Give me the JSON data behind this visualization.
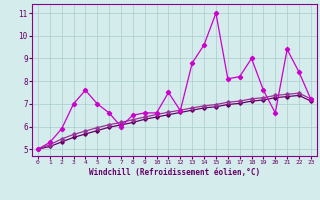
{
  "x": [
    0,
    1,
    2,
    3,
    4,
    5,
    6,
    7,
    8,
    9,
    10,
    11,
    12,
    13,
    14,
    15,
    16,
    17,
    18,
    19,
    20,
    21,
    22,
    23
  ],
  "line1": [
    5.0,
    5.3,
    5.9,
    7.0,
    7.6,
    7.0,
    6.6,
    6.0,
    6.5,
    6.6,
    6.6,
    7.5,
    6.7,
    8.8,
    9.6,
    11.0,
    8.1,
    8.2,
    9.0,
    7.6,
    6.6,
    9.4,
    8.4,
    7.2
  ],
  "trend1": [
    5.0,
    5.2,
    5.45,
    5.65,
    5.8,
    5.95,
    6.08,
    6.18,
    6.3,
    6.42,
    6.53,
    6.63,
    6.72,
    6.82,
    6.91,
    6.97,
    7.07,
    7.12,
    7.22,
    7.27,
    7.37,
    7.42,
    7.47,
    7.22
  ],
  "trend2": [
    5.0,
    5.12,
    5.32,
    5.52,
    5.67,
    5.82,
    5.97,
    6.07,
    6.18,
    6.32,
    6.42,
    6.52,
    6.62,
    6.72,
    6.82,
    6.87,
    6.97,
    7.02,
    7.12,
    7.17,
    7.27,
    7.32,
    7.37,
    7.12
  ],
  "bg_color": "#d4ecec",
  "line_color1": "#cc00cc",
  "trend_color1": "#993399",
  "trend_color2": "#660066",
  "grid_color": "#aacccc",
  "xlabel": "Windchill (Refroidissement éolien,°C)",
  "ylim": [
    4.7,
    11.4
  ],
  "xlim": [
    -0.5,
    23.5
  ],
  "yticks": [
    5,
    6,
    7,
    8,
    9,
    10,
    11
  ],
  "xticks": [
    0,
    1,
    2,
    3,
    4,
    5,
    6,
    7,
    8,
    9,
    10,
    11,
    12,
    13,
    14,
    15,
    16,
    17,
    18,
    19,
    20,
    21,
    22,
    23
  ]
}
